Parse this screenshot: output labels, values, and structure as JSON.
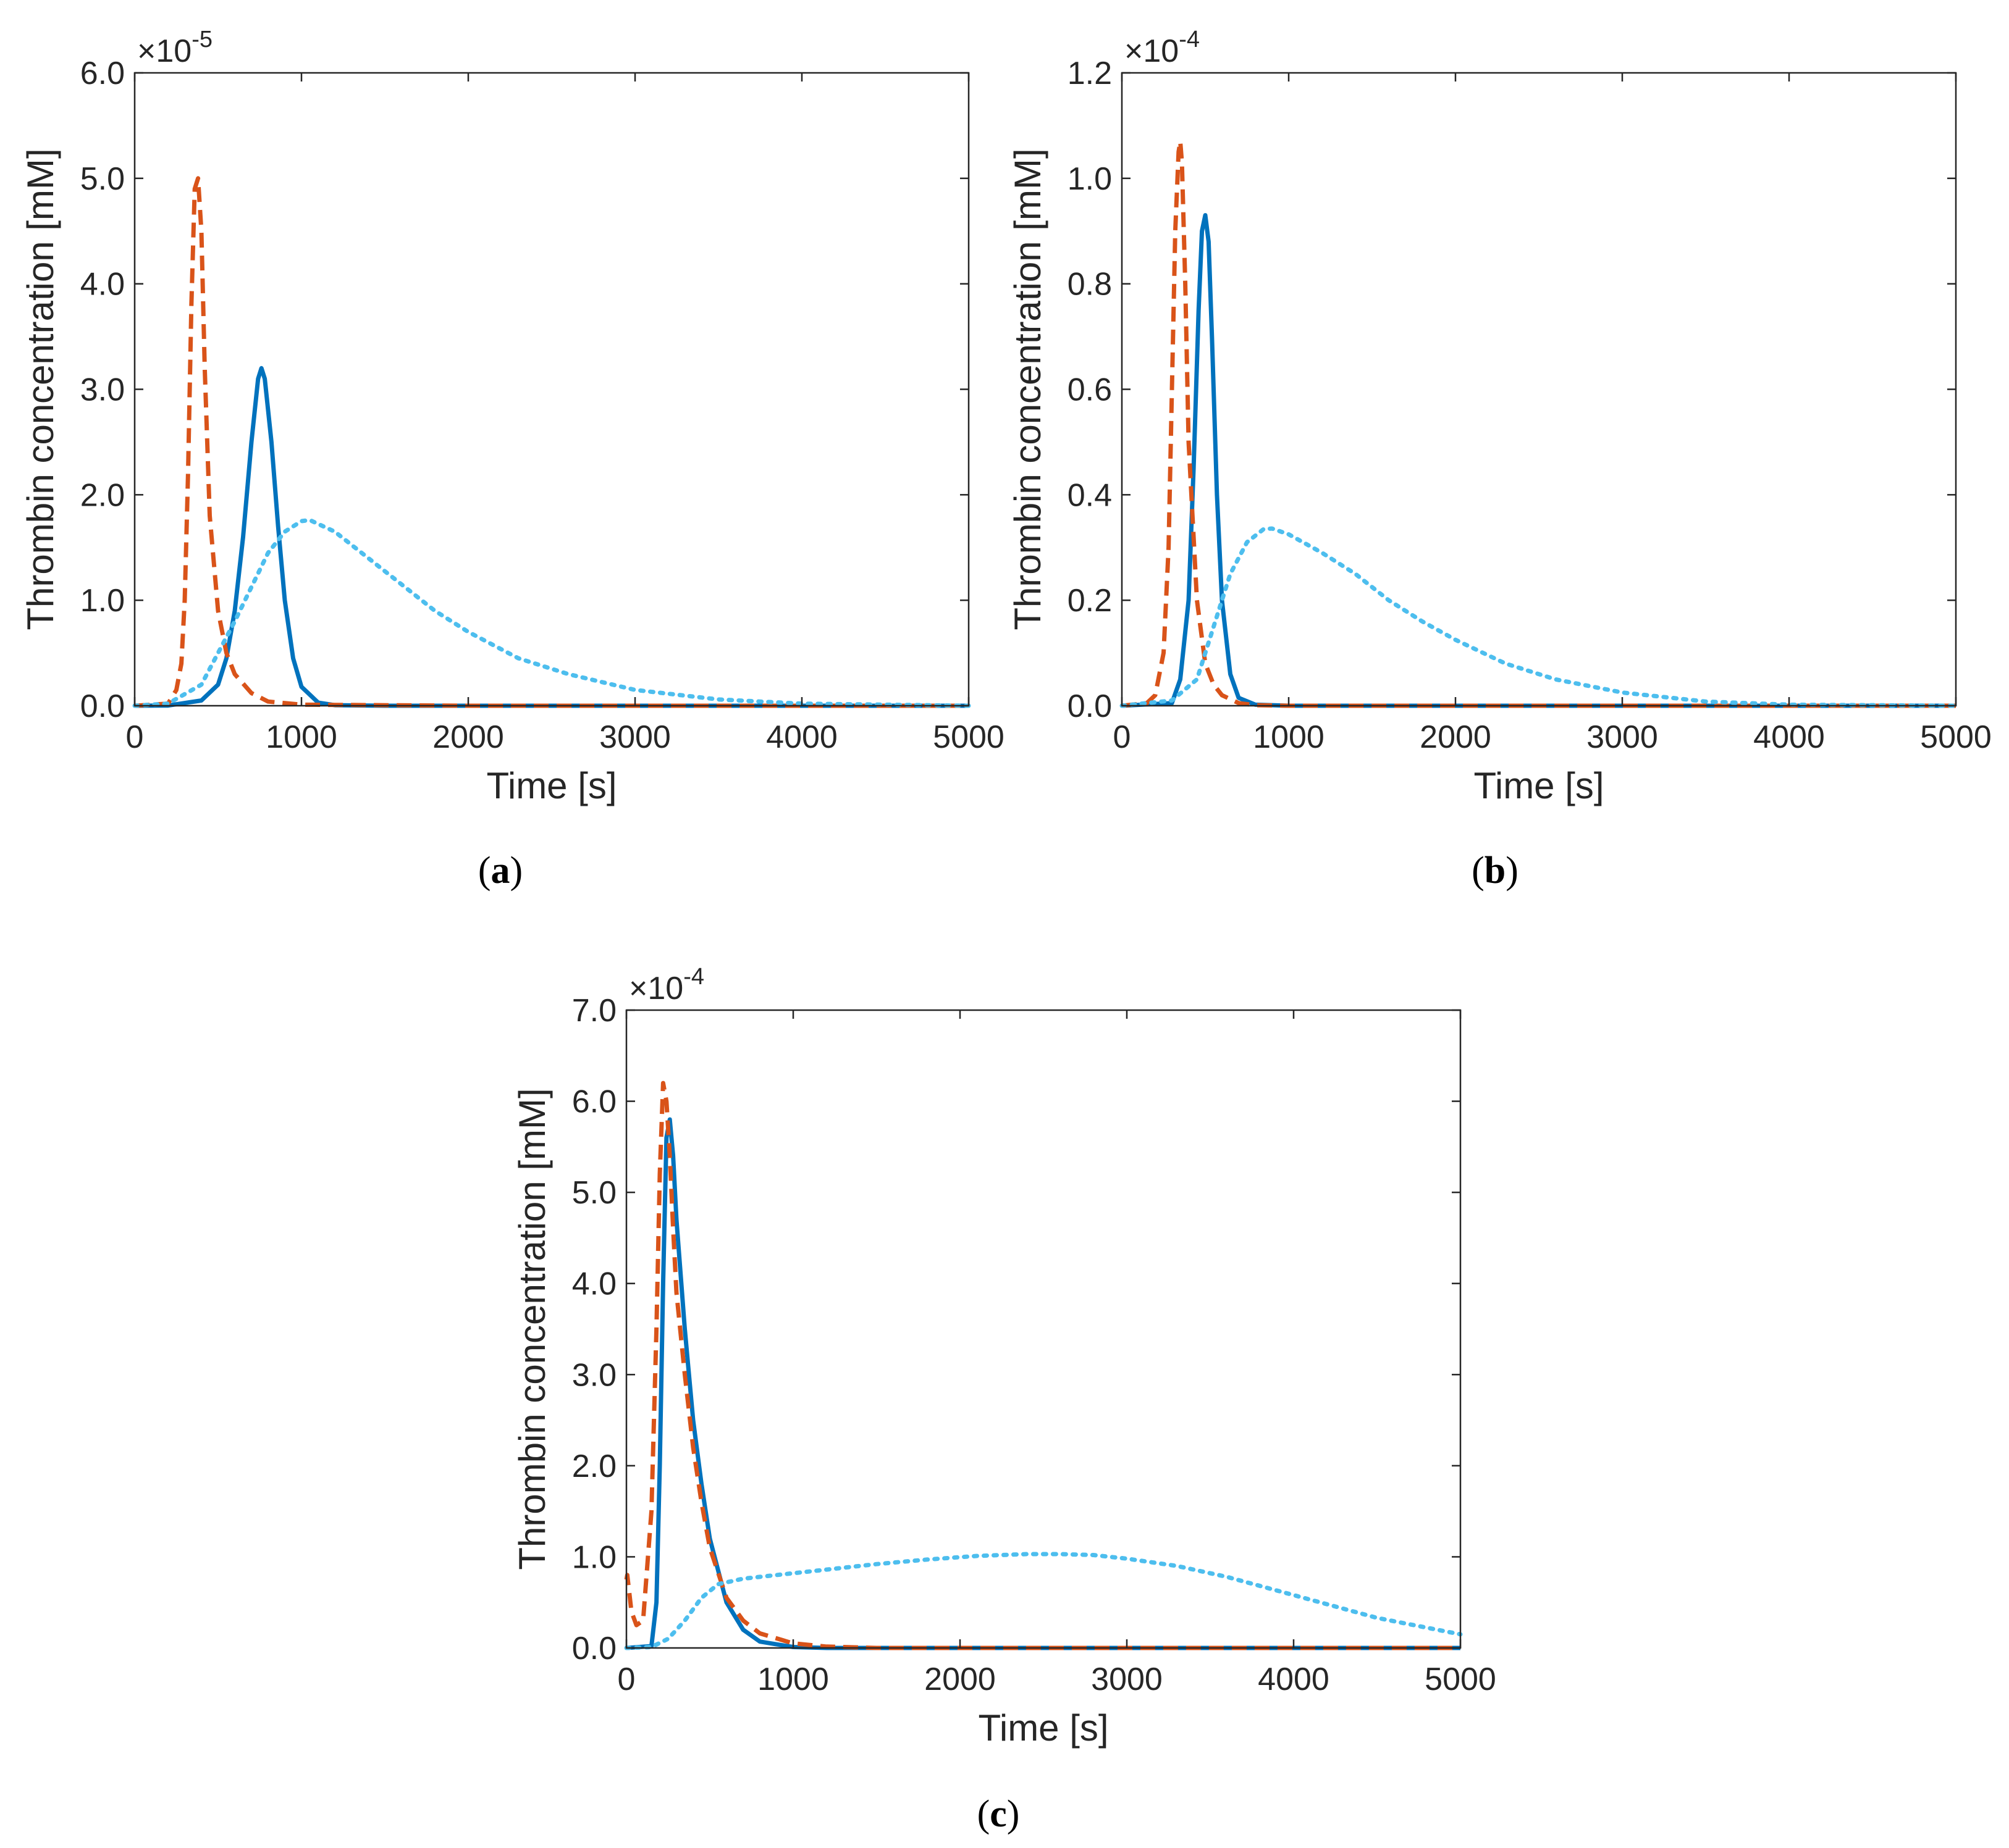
{
  "colors": {
    "solid": "#0072BD",
    "dashed": "#D95319",
    "dotted": "#4DBEEE",
    "axis": "#262626"
  },
  "chart_data": [
    {
      "type": "line",
      "caption": "a",
      "xlabel": "Time [s]",
      "ylabel": "Thrombin concentration [mM]",
      "xlim": [
        0,
        5000
      ],
      "ylim": [
        0,
        6.0
      ],
      "xticks": [
        0,
        1000,
        2000,
        3000,
        4000,
        5000
      ],
      "yticks": [
        "0.0",
        "1.0",
        "2.0",
        "3.0",
        "4.0",
        "5.0",
        "6.0"
      ],
      "y_exponent": "-5",
      "grid": false,
      "series": [
        {
          "style": "solid",
          "x": [
            0,
            200,
            400,
            500,
            550,
            600,
            650,
            700,
            740,
            760,
            780,
            820,
            860,
            900,
            950,
            1000,
            1100,
            1200,
            1500,
            2000,
            3000,
            5000
          ],
          "y": [
            0,
            0.002,
            0.05,
            0.2,
            0.45,
            0.9,
            1.6,
            2.5,
            3.1,
            3.2,
            3.1,
            2.5,
            1.7,
            1.0,
            0.45,
            0.18,
            0.03,
            0.005,
            0,
            0,
            0,
            0
          ]
        },
        {
          "style": "dashed",
          "x": [
            0,
            200,
            250,
            280,
            300,
            320,
            340,
            360,
            380,
            400,
            420,
            450,
            500,
            550,
            600,
            700,
            800,
            1000,
            2000,
            5000
          ],
          "y": [
            0,
            0.02,
            0.15,
            0.4,
            1.0,
            2.2,
            3.8,
            4.9,
            5.0,
            4.5,
            3.2,
            1.8,
            0.9,
            0.5,
            0.3,
            0.12,
            0.04,
            0.01,
            0,
            0
          ]
        },
        {
          "style": "dotted",
          "x": [
            0,
            200,
            400,
            600,
            800,
            900,
            1000,
            1050,
            1200,
            1400,
            1600,
            1800,
            2000,
            2300,
            2600,
            3000,
            3500,
            4000,
            4500,
            5000
          ],
          "y": [
            0,
            0.02,
            0.2,
            0.8,
            1.45,
            1.65,
            1.75,
            1.76,
            1.65,
            1.4,
            1.15,
            0.9,
            0.7,
            0.45,
            0.3,
            0.15,
            0.06,
            0.02,
            0.01,
            0
          ]
        }
      ]
    },
    {
      "type": "line",
      "caption": "b",
      "xlabel": "Time [s]",
      "ylabel": "Thrombin concentration [mM]",
      "xlim": [
        0,
        5000
      ],
      "ylim": [
        0,
        1.2
      ],
      "xticks": [
        0,
        1000,
        2000,
        3000,
        4000,
        5000
      ],
      "yticks": [
        "0.0",
        "0.2",
        "0.4",
        "0.6",
        "0.8",
        "1.0",
        "1.2"
      ],
      "y_exponent": "-4",
      "grid": false,
      "series": [
        {
          "style": "solid",
          "x": [
            0,
            300,
            350,
            400,
            430,
            460,
            480,
            500,
            520,
            540,
            570,
            600,
            650,
            700,
            800,
            1000,
            5000
          ],
          "y": [
            0,
            0.005,
            0.05,
            0.2,
            0.45,
            0.75,
            0.9,
            0.93,
            0.88,
            0.7,
            0.4,
            0.2,
            0.06,
            0.015,
            0.002,
            0,
            0
          ]
        },
        {
          "style": "dashed",
          "x": [
            0,
            150,
            200,
            250,
            280,
            300,
            320,
            340,
            350,
            360,
            380,
            400,
            450,
            500,
            550,
            600,
            700,
            800,
            1000,
            5000
          ],
          "y": [
            0,
            0.005,
            0.02,
            0.1,
            0.3,
            0.6,
            0.9,
            1.05,
            1.07,
            1.03,
            0.8,
            0.5,
            0.2,
            0.08,
            0.04,
            0.02,
            0.005,
            0.001,
            0,
            0
          ]
        },
        {
          "style": "dotted",
          "x": [
            0,
            300,
            450,
            550,
            650,
            750,
            850,
            900,
            1000,
            1200,
            1400,
            1600,
            1800,
            2000,
            2300,
            2600,
            3000,
            3500,
            4000,
            5000
          ],
          "y": [
            0,
            0.01,
            0.05,
            0.15,
            0.25,
            0.31,
            0.335,
            0.336,
            0.325,
            0.29,
            0.25,
            0.2,
            0.16,
            0.125,
            0.08,
            0.05,
            0.025,
            0.008,
            0.002,
            0
          ]
        }
      ]
    },
    {
      "type": "line",
      "caption": "c",
      "xlabel": "Time [s]",
      "ylabel": "Thrombin concentration [mM]",
      "xlim": [
        0,
        5000
      ],
      "ylim": [
        0,
        7.0
      ],
      "xticks": [
        0,
        1000,
        2000,
        3000,
        4000,
        5000
      ],
      "yticks": [
        "0.0",
        "1.0",
        "2.0",
        "3.0",
        "4.0",
        "5.0",
        "6.0",
        "7.0"
      ],
      "y_exponent": "-4",
      "grid": false,
      "series": [
        {
          "style": "solid",
          "x": [
            0,
            150,
            180,
            200,
            220,
            240,
            260,
            280,
            300,
            350,
            400,
            450,
            500,
            600,
            700,
            800,
            1000,
            1200,
            5000
          ],
          "y": [
            0,
            0.02,
            0.5,
            2.0,
            4.0,
            5.6,
            5.8,
            5.4,
            4.7,
            3.5,
            2.5,
            1.8,
            1.2,
            0.5,
            0.2,
            0.07,
            0.01,
            0,
            0
          ]
        },
        {
          "style": "dashed",
          "x": [
            0,
            5,
            30,
            60,
            100,
            150,
            180,
            200,
            220,
            240,
            260,
            280,
            300,
            350,
            400,
            450,
            500,
            600,
            700,
            800,
            1000,
            1200,
            1500,
            5000
          ],
          "y": [
            0.75,
            0.8,
            0.4,
            0.25,
            0.3,
            1.5,
            3.5,
            5.2,
            6.2,
            6.0,
            5.4,
            4.6,
            3.9,
            3.0,
            2.2,
            1.6,
            1.1,
            0.55,
            0.3,
            0.16,
            0.05,
            0.015,
            0,
            0
          ]
        },
        {
          "style": "dotted",
          "x": [
            0,
            150,
            250,
            350,
            450,
            550,
            700,
            900,
            1200,
            1500,
            1800,
            2100,
            2400,
            2600,
            2800,
            3000,
            3300,
            3600,
            4000,
            4500,
            5000
          ],
          "y": [
            0,
            0.01,
            0.1,
            0.3,
            0.55,
            0.7,
            0.76,
            0.8,
            0.86,
            0.92,
            0.97,
            1.01,
            1.03,
            1.03,
            1.02,
            0.98,
            0.9,
            0.78,
            0.58,
            0.33,
            0.15
          ]
        }
      ]
    }
  ]
}
